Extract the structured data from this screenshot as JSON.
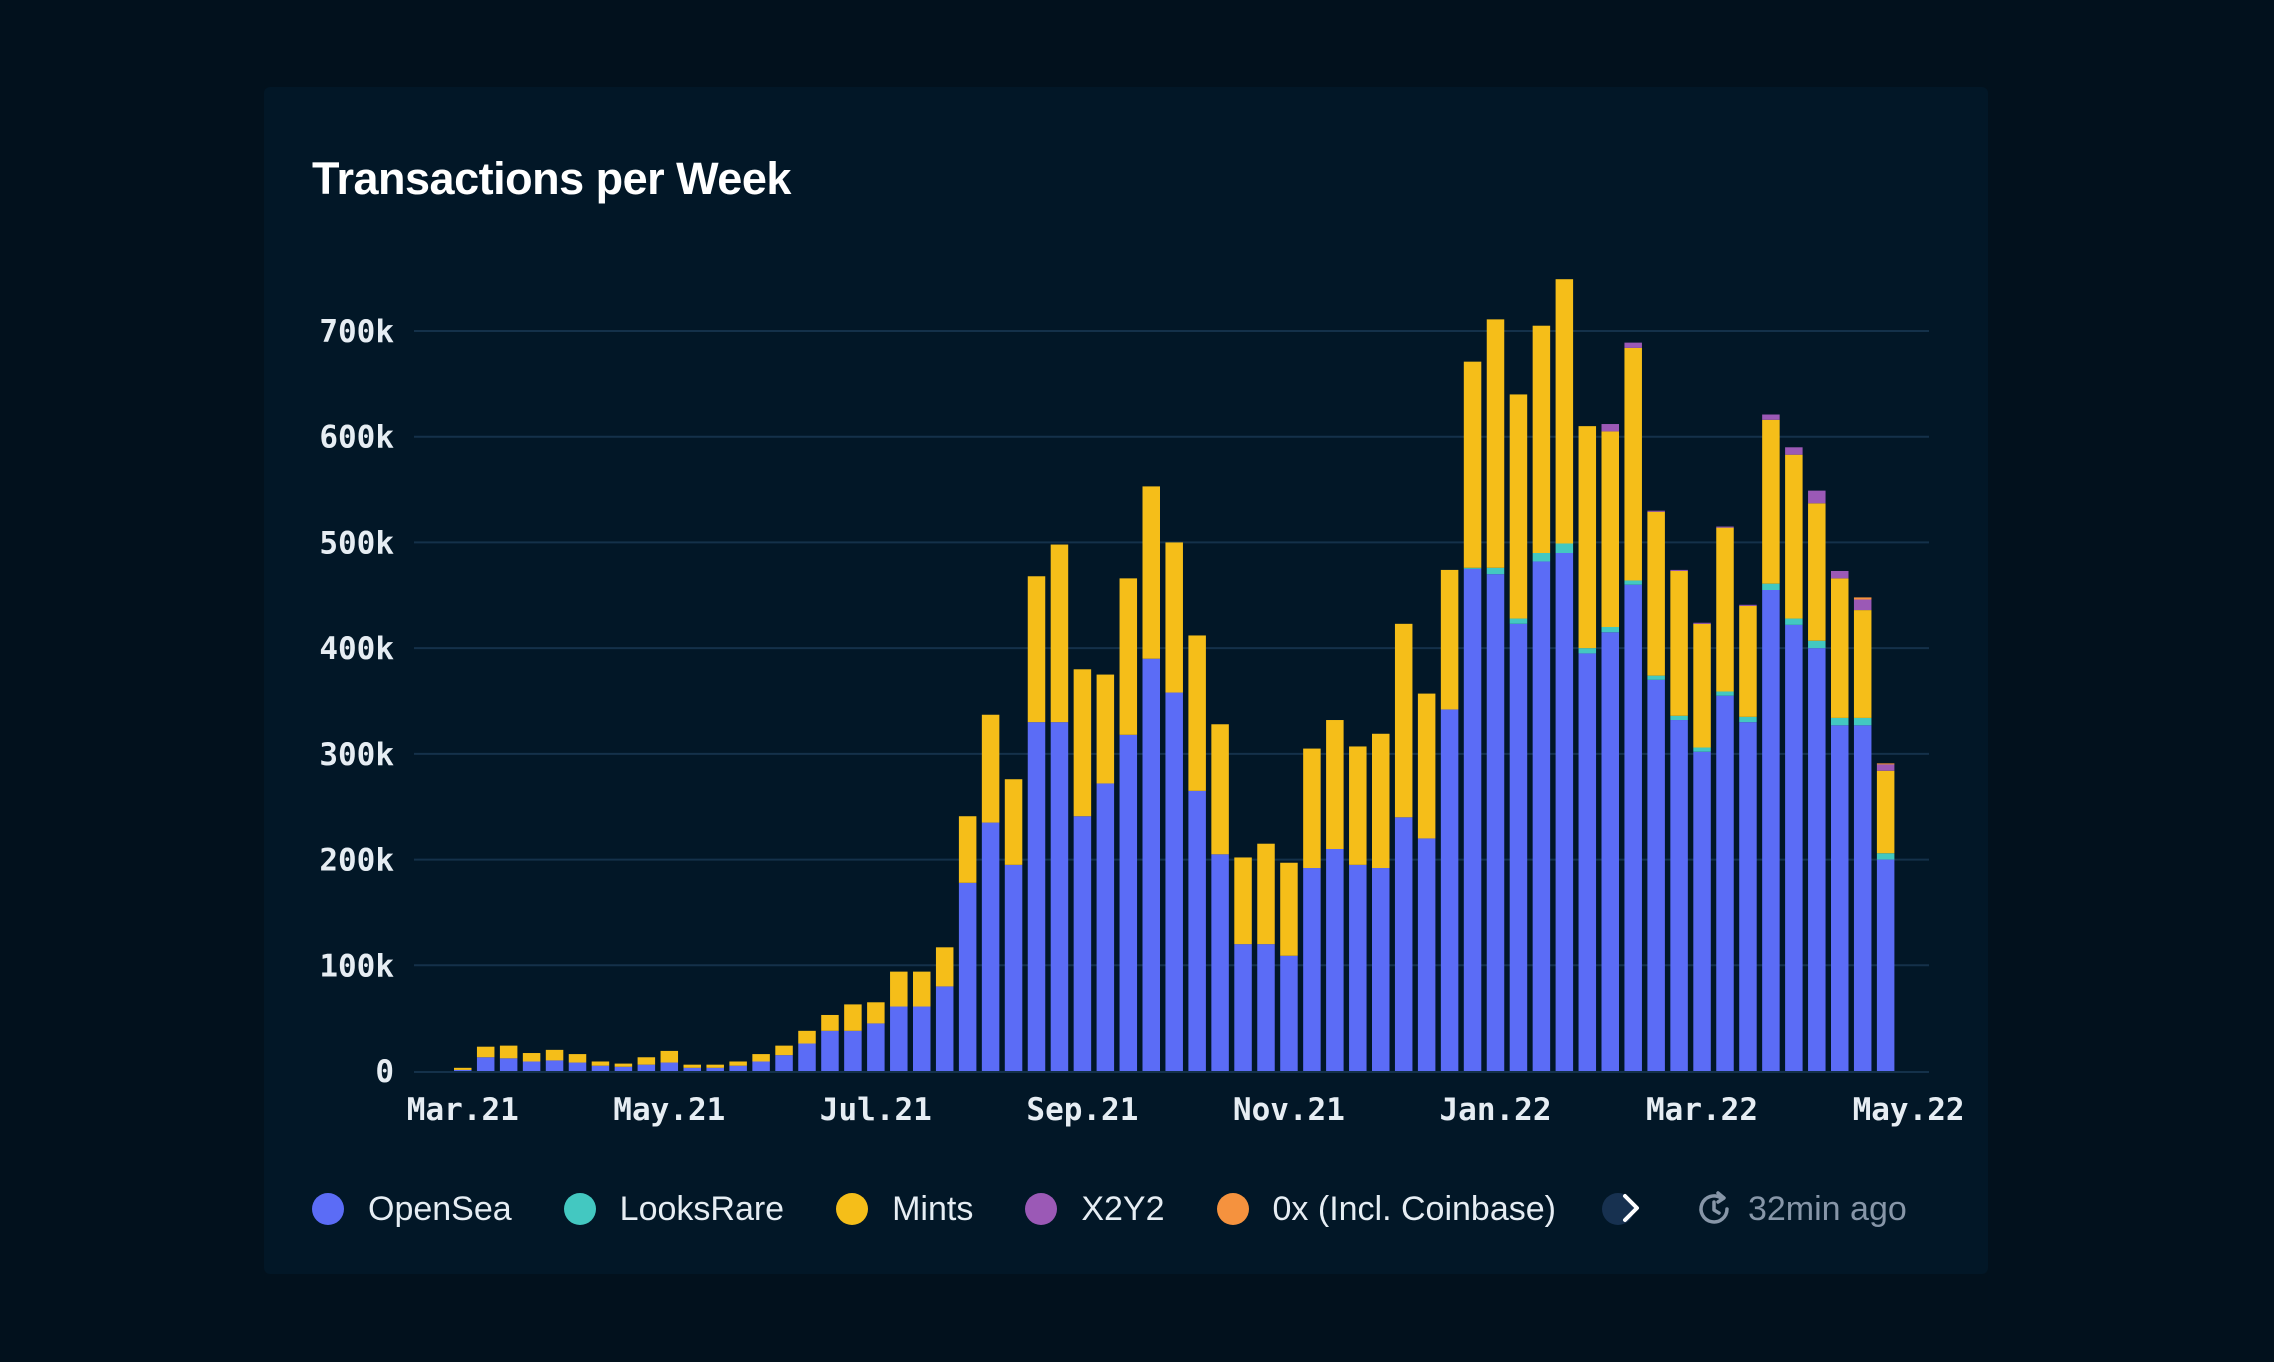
{
  "card": {
    "title": "Transactions per Week"
  },
  "footer": {
    "refresh_text": "32min ago",
    "more_icon": "chevron-right-icon",
    "refresh_icon": "refresh-clock-icon"
  },
  "colors": {
    "background": "#02111d",
    "card": "#021727",
    "grid": "#14314a",
    "opensea": "#5b6cf6",
    "looksrare": "#43c8c1",
    "mints": "#f5be19",
    "x2y2": "#9b59b6",
    "ox": "#f5923e"
  },
  "chart_data": {
    "type": "bar",
    "stacked": true,
    "title": "Transactions per Week",
    "xlabel": "",
    "ylabel": "",
    "ylim": [
      0,
      750000
    ],
    "yticks": [
      0,
      100000,
      200000,
      300000,
      400000,
      500000,
      600000,
      700000
    ],
    "ytick_labels": [
      "0",
      "100k",
      "200k",
      "300k",
      "400k",
      "500k",
      "600k",
      "700k"
    ],
    "xtick_labels": [
      "Mar.21",
      "May.21",
      "Jul.21",
      "Sep.21",
      "Nov.21",
      "Jan.22",
      "Mar.22",
      "May.22"
    ],
    "xtick_week_index": [
      0,
      9,
      18,
      27,
      36,
      45,
      54,
      63
    ],
    "grid": true,
    "legend": "bottom",
    "series": [
      {
        "name": "OpenSea",
        "color": "#5b6cf6",
        "values": [
          1000,
          13000,
          12000,
          9000,
          10000,
          8000,
          5000,
          4000,
          6000,
          8000,
          3000,
          3000,
          5000,
          9000,
          15000,
          26000,
          38000,
          38000,
          45000,
          61000,
          61000,
          80000,
          178000,
          235000,
          195000,
          330000,
          330000,
          241000,
          272000,
          318000,
          390000,
          358000,
          265000,
          205000,
          120000,
          120000,
          109000,
          192000,
          210000,
          195000,
          192000,
          240000,
          220000,
          342000,
          475000,
          470000,
          423000,
          482000,
          490000,
          395000,
          415000,
          460000,
          370000,
          332000,
          302000,
          355000,
          330000,
          455000,
          422000,
          400000,
          327000,
          327000,
          200000
        ]
      },
      {
        "name": "LooksRare",
        "color": "#43c8c1",
        "values": [
          0,
          0,
          0,
          0,
          0,
          0,
          0,
          0,
          0,
          0,
          0,
          0,
          0,
          0,
          0,
          0,
          0,
          0,
          0,
          0,
          0,
          0,
          0,
          0,
          0,
          0,
          0,
          0,
          0,
          0,
          0,
          0,
          0,
          0,
          0,
          0,
          0,
          0,
          0,
          0,
          0,
          0,
          0,
          0,
          1000,
          6000,
          5000,
          8000,
          9000,
          5000,
          5000,
          4000,
          4000,
          4000,
          4000,
          4000,
          5000,
          6000,
          6000,
          7000,
          7000,
          7000,
          6000
        ]
      },
      {
        "name": "Mints",
        "color": "#f5be19",
        "values": [
          2000,
          10000,
          12000,
          8000,
          10000,
          8000,
          4000,
          3000,
          7000,
          11000,
          3000,
          3000,
          4000,
          7000,
          9000,
          12000,
          15000,
          25000,
          20000,
          33000,
          33000,
          37000,
          63000,
          102000,
          81000,
          138000,
          168000,
          139000,
          103000,
          148000,
          163000,
          142000,
          147000,
          123000,
          82000,
          95000,
          88000,
          113000,
          122000,
          112000,
          127000,
          183000,
          137000,
          132000,
          195000,
          235000,
          212000,
          215000,
          250000,
          210000,
          185000,
          220000,
          155000,
          137000,
          117000,
          155000,
          105000,
          155000,
          155000,
          130000,
          132000,
          102000,
          78000
        ]
      },
      {
        "name": "X2Y2",
        "color": "#9b59b6",
        "values": [
          0,
          0,
          0,
          0,
          0,
          0,
          0,
          0,
          0,
          0,
          0,
          0,
          0,
          0,
          0,
          0,
          0,
          0,
          0,
          0,
          0,
          0,
          0,
          0,
          0,
          0,
          0,
          0,
          0,
          0,
          0,
          0,
          0,
          0,
          0,
          0,
          0,
          0,
          0,
          0,
          0,
          0,
          0,
          0,
          0,
          0,
          0,
          0,
          0,
          0,
          7000,
          5000,
          1000,
          1000,
          1000,
          1000,
          1000,
          5000,
          7000,
          12000,
          7000,
          10000,
          6000
        ]
      },
      {
        "name": "0x (Incl. Coinbase)",
        "color": "#f5923e",
        "values": [
          0,
          0,
          0,
          0,
          0,
          0,
          0,
          0,
          0,
          0,
          0,
          0,
          0,
          0,
          0,
          0,
          0,
          0,
          0,
          0,
          0,
          0,
          0,
          0,
          0,
          0,
          0,
          0,
          0,
          0,
          0,
          0,
          0,
          0,
          0,
          0,
          0,
          0,
          0,
          0,
          0,
          0,
          0,
          0,
          0,
          0,
          0,
          0,
          0,
          0,
          0,
          0,
          0,
          0,
          0,
          0,
          0,
          0,
          0,
          0,
          0,
          2000,
          1000
        ]
      }
    ]
  }
}
